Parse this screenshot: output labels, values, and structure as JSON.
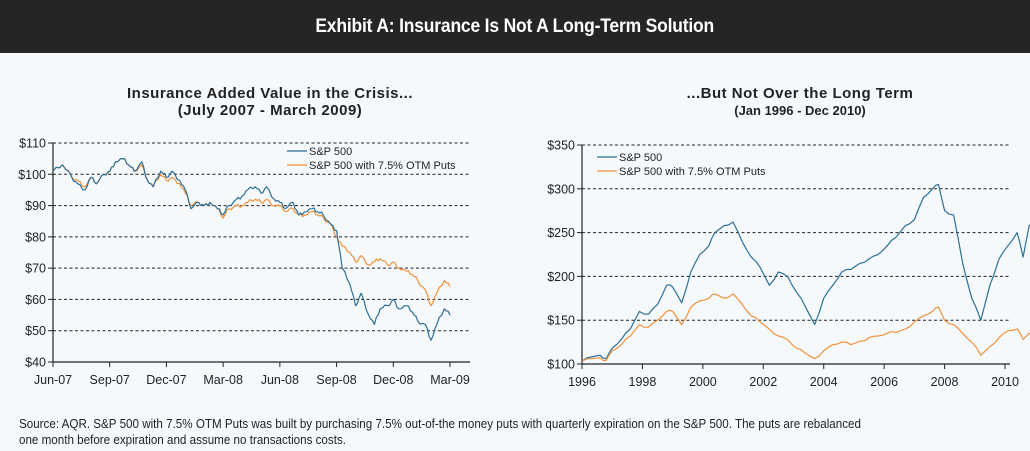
{
  "header": {
    "title": "Exhibit A: Insurance Is Not A Long-Term Solution"
  },
  "footer": {
    "line1": "Source: AQR. S&P 500 with 7.5% OTM Puts was built by purchasing 7.5% out-of-the money puts with quarterly expiration on the S&P 500. The puts are rebalanced",
    "line2": "one month before expiration and assume no transactions costs."
  },
  "colors": {
    "sp500": "#2e6f96",
    "puts": "#f0923a",
    "banner_bg": "#252525",
    "page_bg": "#f6f9fc"
  },
  "chart_data": [
    {
      "type": "line",
      "title": "Insurance Added Value in the Crisis...",
      "subtitle": "(July 2007 - March 2009)",
      "xlabel": "",
      "ylabel": "",
      "x_ticks": [
        "Jun-07",
        "Sep-07",
        "Dec-07",
        "Mar-08",
        "Jun-08",
        "Sep-08",
        "Dec-08",
        "Mar-09"
      ],
      "x_range_months": [
        0,
        21
      ],
      "y_ticks": [
        "$40",
        "$50",
        "$60",
        "$70",
        "$80",
        "$90",
        "$100",
        "$110"
      ],
      "ylim": [
        40,
        110
      ],
      "grid": "horizontal-dashed",
      "legend_position": "top-right",
      "series": [
        {
          "name": "S&P 500",
          "x_months": [
            0,
            0.5,
            1,
            1.3,
            1.7,
            2,
            2.3,
            2.7,
            3,
            3.3,
            3.7,
            4,
            4.3,
            4.7,
            5,
            5.3,
            5.7,
            6,
            6.3,
            6.7,
            7,
            7.3,
            7.7,
            8,
            8.3,
            8.7,
            9,
            9.3,
            9.7,
            10,
            10.3,
            10.7,
            11,
            11.3,
            11.7,
            12,
            12.3,
            12.7,
            13,
            13.3,
            13.7,
            14,
            14.3,
            14.7,
            15,
            15.3,
            15.7,
            16,
            16.3,
            16.7,
            17,
            17.3,
            17.7,
            18,
            18.3,
            18.7,
            19,
            19.3,
            19.7,
            20,
            20.3,
            20.7,
            21
          ],
          "values": [
            101,
            103,
            99,
            97,
            95,
            99,
            97,
            100,
            101,
            104,
            105,
            103,
            101,
            104,
            98,
            96,
            101,
            99,
            101,
            98,
            95,
            89,
            91,
            90,
            91,
            89,
            87,
            90,
            92,
            93,
            95,
            96,
            94,
            96,
            92,
            91,
            89,
            91,
            87,
            88,
            89,
            88,
            87,
            84,
            82,
            70,
            65,
            58,
            62,
            55,
            52,
            57,
            58,
            60,
            57,
            58,
            56,
            53,
            52,
            47,
            52,
            57,
            55
          ]
        },
        {
          "name": "S&P 500 with 7.5% OTM Puts",
          "x_months": [
            0,
            0.5,
            1,
            1.3,
            1.7,
            2,
            2.3,
            2.7,
            3,
            3.3,
            3.7,
            4,
            4.3,
            4.7,
            5,
            5.3,
            5.7,
            6,
            6.3,
            6.7,
            7,
            7.3,
            7.7,
            8,
            8.3,
            8.7,
            9,
            9.3,
            9.7,
            10,
            10.3,
            10.7,
            11,
            11.3,
            11.7,
            12,
            12.3,
            12.7,
            13,
            13.3,
            13.7,
            14,
            14.3,
            14.7,
            15,
            15.3,
            15.7,
            16,
            16.3,
            16.7,
            17,
            17.3,
            17.7,
            18,
            18.3,
            18.7,
            19,
            19.3,
            19.7,
            20,
            20.3,
            20.7,
            21
          ],
          "values": [
            101,
            103,
            99,
            98,
            96,
            99,
            97,
            100,
            101,
            104,
            105,
            103,
            101,
            103,
            98,
            96,
            100,
            98,
            99,
            97,
            94,
            90,
            91,
            90,
            91,
            89,
            86,
            89,
            90,
            90,
            91,
            92,
            91,
            92,
            90,
            90,
            88,
            89,
            87,
            87,
            88,
            87,
            86,
            84,
            80,
            77,
            75,
            72,
            74,
            71,
            72,
            73,
            71,
            72,
            70,
            69,
            68,
            66,
            63,
            58,
            62,
            66,
            64
          ]
        }
      ]
    },
    {
      "type": "line",
      "title": "...But Not Over the Long Term",
      "subtitle": "(Jan 1996 - Dec 2010)",
      "xlabel": "",
      "ylabel": "",
      "x_ticks": [
        "1996",
        "1998",
        "2000",
        "2002",
        "2004",
        "2006",
        "2008",
        "2010"
      ],
      "xlim": [
        1996,
        2011
      ],
      "y_ticks": [
        "$100",
        "$150",
        "$200",
        "$250",
        "$300",
        "$350"
      ],
      "ylim": [
        100,
        350
      ],
      "grid": "horizontal-dashed",
      "legend_position": "top-left",
      "series": [
        {
          "name": "S&P 500",
          "x": [
            1996,
            1996.3,
            1996.6,
            1996.8,
            1997,
            1997.3,
            1997.6,
            1997.9,
            1998.2,
            1998.5,
            1998.8,
            1999,
            1999.3,
            1999.6,
            1999.9,
            2000.2,
            2000.4,
            2000.7,
            2001,
            2001.3,
            2001.6,
            2001.9,
            2002.2,
            2002.5,
            2002.8,
            2003.1,
            2003.4,
            2003.7,
            2004,
            2004.3,
            2004.6,
            2004.9,
            2005.2,
            2005.5,
            2005.8,
            2006.1,
            2006.4,
            2006.7,
            2007,
            2007.3,
            2007.6,
            2007.8,
            2008,
            2008.3,
            2008.6,
            2008.9,
            2009.2,
            2009.5,
            2009.8,
            2010.1,
            2010.4,
            2010.6,
            2010.8,
            2011
          ],
          "values": [
            103,
            108,
            110,
            106,
            118,
            128,
            140,
            160,
            157,
            168,
            190,
            188,
            170,
            205,
            225,
            235,
            250,
            258,
            262,
            240,
            222,
            210,
            190,
            205,
            200,
            182,
            165,
            145,
            175,
            190,
            205,
            208,
            215,
            220,
            225,
            235,
            245,
            258,
            265,
            290,
            300,
            305,
            275,
            270,
            215,
            175,
            150,
            190,
            220,
            235,
            250,
            222,
            258,
            266
          ]
        },
        {
          "name": "S&P 500 with 7.5% OTM Puts",
          "x": [
            1996,
            1996.3,
            1996.6,
            1996.8,
            1997,
            1997.3,
            1997.6,
            1997.9,
            1998.2,
            1998.5,
            1998.8,
            1999,
            1999.3,
            1999.6,
            1999.9,
            2000.2,
            2000.4,
            2000.7,
            2001,
            2001.3,
            2001.6,
            2001.9,
            2002.2,
            2002.5,
            2002.8,
            2003.1,
            2003.4,
            2003.7,
            2004,
            2004.3,
            2004.6,
            2004.9,
            2005.2,
            2005.5,
            2005.8,
            2006.1,
            2006.4,
            2006.7,
            2007,
            2007.3,
            2007.6,
            2007.8,
            2008,
            2008.3,
            2008.6,
            2008.9,
            2009.2,
            2009.5,
            2009.8,
            2010.1,
            2010.4,
            2010.6,
            2010.8,
            2011
          ],
          "values": [
            103,
            106,
            107,
            104,
            115,
            122,
            132,
            145,
            142,
            150,
            160,
            160,
            145,
            165,
            172,
            175,
            180,
            175,
            180,
            168,
            155,
            148,
            140,
            132,
            128,
            118,
            112,
            106,
            115,
            122,
            125,
            122,
            126,
            130,
            132,
            135,
            136,
            140,
            148,
            155,
            160,
            165,
            150,
            145,
            135,
            125,
            110,
            120,
            130,
            138,
            140,
            128,
            135,
            138
          ]
        }
      ]
    }
  ]
}
